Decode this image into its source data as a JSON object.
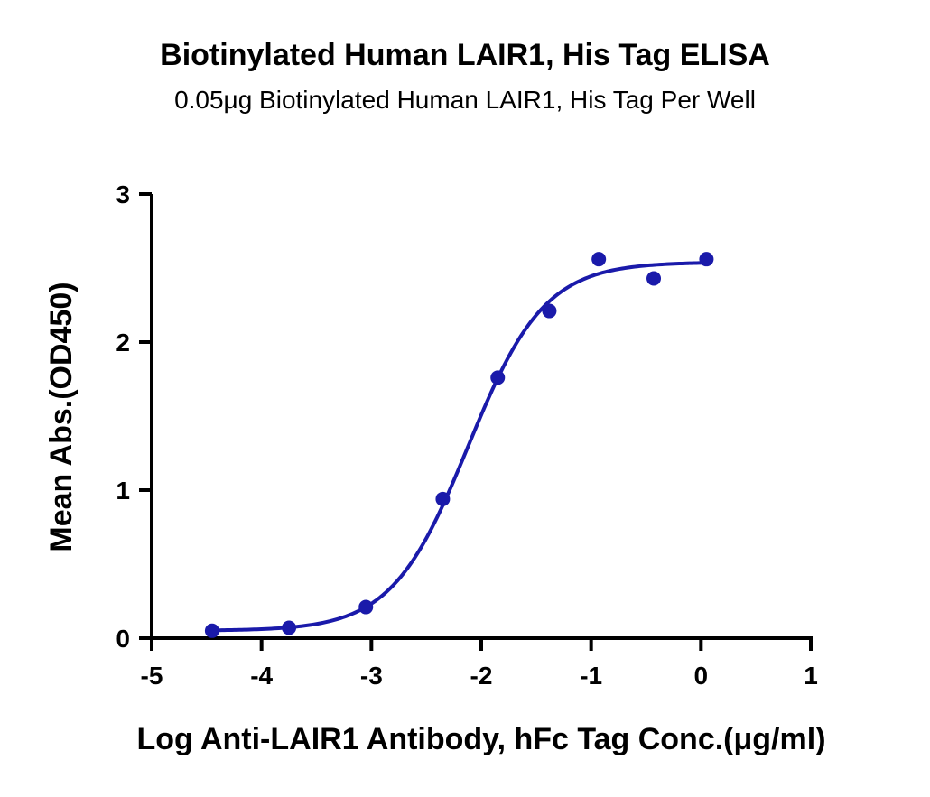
{
  "chart_data": {
    "type": "scatter",
    "title": "Biotinylated Human LAIR1, His Tag ELISA",
    "subtitle": "0.05μg Biotinylated Human LAIR1, His Tag Per Well",
    "xlabel": "Log Anti-LAIR1 Antibody, hFc Tag Conc.(μg/ml)",
    "ylabel": "Mean Abs.(OD450)",
    "xlim": [
      -5,
      1
    ],
    "ylim": [
      0,
      3
    ],
    "x_ticks": [
      -5,
      -4,
      -3,
      -2,
      -1,
      0,
      1
    ],
    "y_ticks": [
      0,
      1,
      2,
      3
    ],
    "grid": false,
    "series": [
      {
        "color": "#1a1aaa",
        "points": [
          {
            "x": -4.45,
            "y": 0.05
          },
          {
            "x": -3.75,
            "y": 0.07
          },
          {
            "x": -3.05,
            "y": 0.21
          },
          {
            "x": -2.35,
            "y": 0.94
          },
          {
            "x": -1.85,
            "y": 1.76
          },
          {
            "x": -1.38,
            "y": 2.21
          },
          {
            "x": -0.93,
            "y": 2.56
          },
          {
            "x": -0.43,
            "y": 2.43
          },
          {
            "x": 0.05,
            "y": 2.56
          }
        ],
        "fit_curve": {
          "model": "four-parameter logistic",
          "bottom": 0.05,
          "top": 2.54,
          "log_ec50": -2.12,
          "hill_slope": 1.25,
          "x_range": [
            -4.45,
            0.05
          ]
        }
      }
    ]
  }
}
